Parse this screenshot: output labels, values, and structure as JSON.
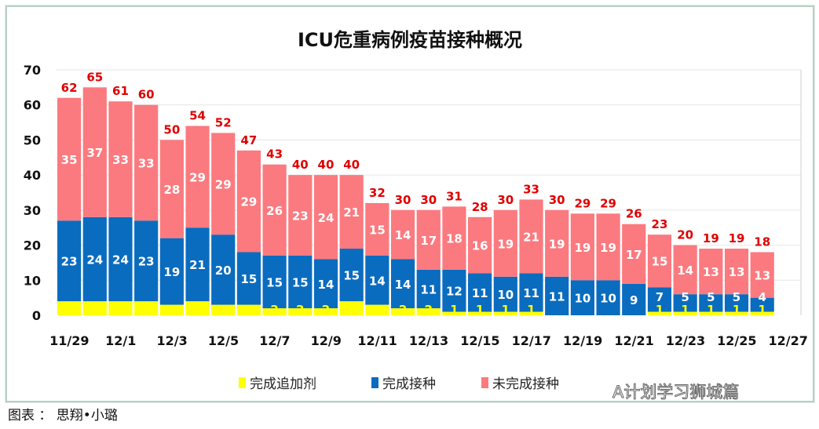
{
  "chart_data": {
    "type": "bar",
    "stacked": true,
    "title": "ICU危重病例疫苗接种概况",
    "ylim": [
      0,
      70
    ],
    "yticks": [
      0,
      10,
      20,
      30,
      40,
      50,
      60,
      70
    ],
    "grid": true,
    "legend_placement": "bottom",
    "categories": [
      "11/29",
      "11/30",
      "12/1",
      "12/2",
      "12/3",
      "12/4",
      "12/5",
      "12/6",
      "12/7",
      "12/8",
      "12/9",
      "12/10",
      "12/11",
      "12/12",
      "12/13",
      "12/14",
      "12/15",
      "12/16",
      "12/17",
      "12/18",
      "12/19",
      "12/20",
      "12/21",
      "12/22",
      "12/23",
      "12/24",
      "12/25",
      "12/26",
      "12/27"
    ],
    "xtick_labels": [
      "11/29",
      "12/1",
      "12/3",
      "12/5",
      "12/7",
      "12/9",
      "12/11",
      "12/13",
      "12/15",
      "12/17",
      "12/19",
      "12/21",
      "12/23",
      "12/25",
      "12/27"
    ],
    "series": [
      {
        "name": "完成追加剂",
        "color": "#ffff00",
        "label_color": "#ffff00",
        "values": [
          4,
          4,
          4,
          4,
          3,
          4,
          3,
          3,
          2,
          2,
          2,
          4,
          3,
          2,
          2,
          1,
          1,
          1,
          1,
          0,
          0,
          0,
          0,
          1,
          1,
          1,
          1,
          1,
          null
        ]
      },
      {
        "name": "完成接种",
        "color": "#0a6cbf",
        "label_color": "#ffffff",
        "values": [
          23,
          24,
          24,
          23,
          19,
          21,
          20,
          15,
          15,
          15,
          14,
          15,
          14,
          14,
          11,
          12,
          11,
          10,
          11,
          11,
          10,
          10,
          9,
          7,
          5,
          5,
          5,
          4,
          null
        ]
      },
      {
        "name": "未完成接种",
        "color": "#fb7a7f",
        "label_color": "#ffffff",
        "values": [
          35,
          37,
          33,
          33,
          28,
          29,
          29,
          29,
          26,
          23,
          24,
          21,
          15,
          14,
          17,
          18,
          16,
          19,
          21,
          19,
          19,
          19,
          17,
          15,
          14,
          13,
          13,
          13,
          null
        ]
      }
    ],
    "totals": [
      62,
      65,
      61,
      60,
      50,
      54,
      52,
      47,
      43,
      40,
      40,
      40,
      32,
      30,
      30,
      31,
      28,
      30,
      33,
      30,
      29,
      29,
      26,
      23,
      20,
      19,
      19,
      18,
      null
    ],
    "total_label_color": "#e00000"
  },
  "caption": "图表 ： 思翔•小璐",
  "watermark": "A计划学习狮城篇"
}
